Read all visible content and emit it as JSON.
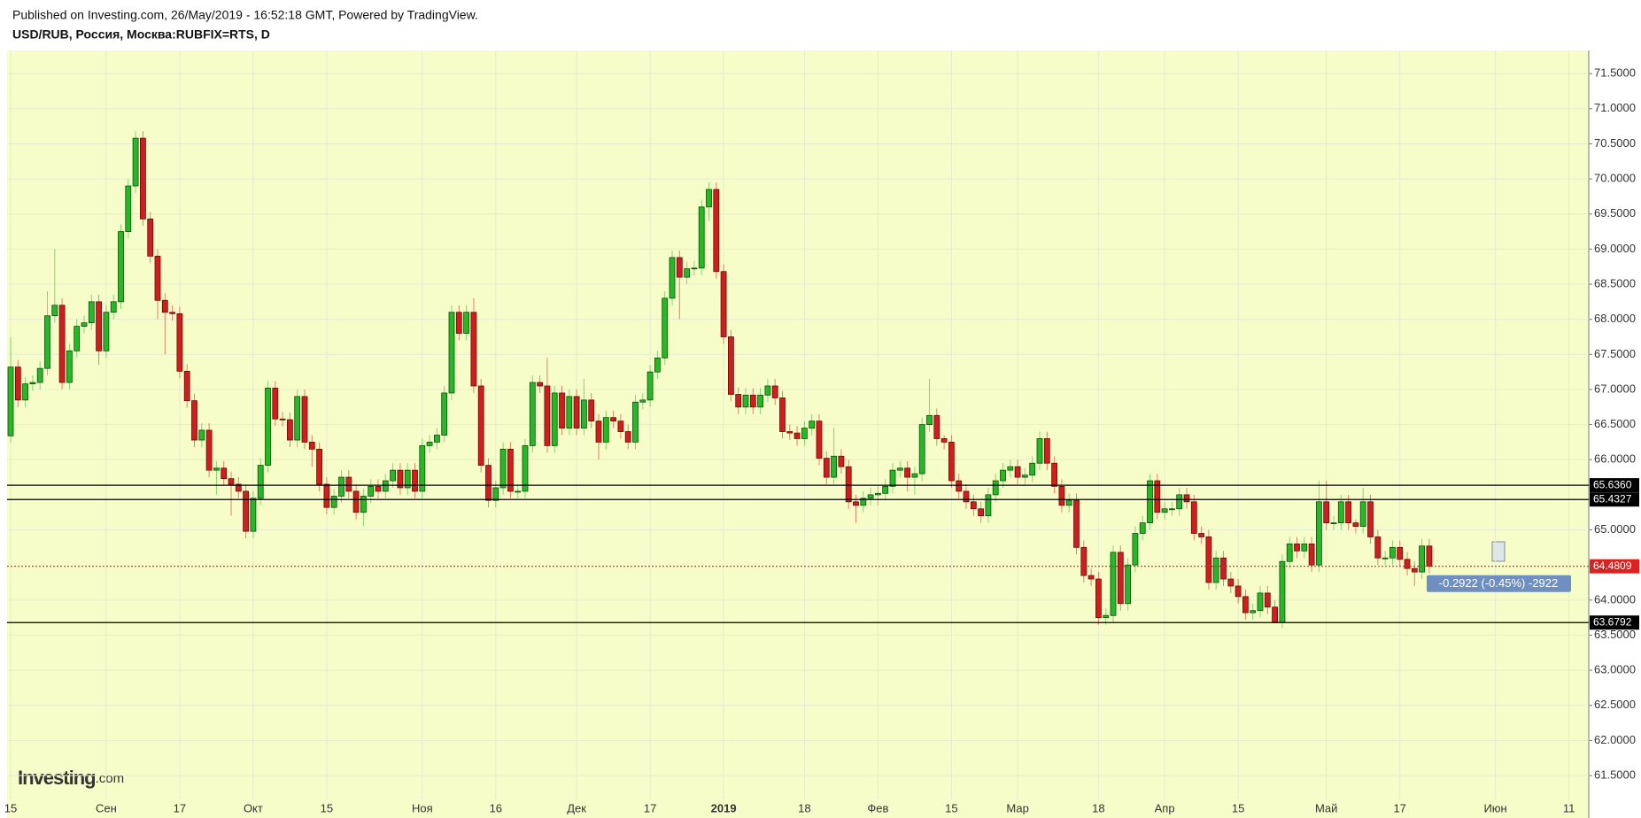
{
  "chart_data": {
    "type": "candlestick",
    "header": "Published on Investing.com, 26/May/2019 - 16:52:18 GMT, Powered by TradingView.",
    "title": "USD/RUB, Россия, Москва:RUBFIX=RTS, D",
    "logo": {
      "brand": "Investing",
      "suffix": ".com"
    },
    "up_color": "#27b827",
    "down_color": "#d21d1d",
    "grid": true,
    "categories": [
      "15",
      null,
      null,
      null,
      null,
      null,
      null,
      null,
      null,
      null,
      null,
      null,
      null,
      "Сен",
      null,
      null,
      null,
      null,
      null,
      null,
      null,
      null,
      null,
      "17",
      null,
      null,
      null,
      null,
      null,
      null,
      null,
      null,
      null,
      "Окт",
      null,
      null,
      null,
      null,
      null,
      null,
      null,
      null,
      null,
      "15",
      null,
      null,
      null,
      null,
      null,
      null,
      null,
      null,
      null,
      null,
      null,
      null,
      "Ноя",
      null,
      null,
      null,
      null,
      null,
      null,
      null,
      null,
      null,
      "16",
      null,
      null,
      null,
      null,
      null,
      null,
      null,
      null,
      null,
      null,
      "Дек",
      null,
      null,
      null,
      null,
      null,
      null,
      null,
      null,
      null,
      "17",
      null,
      null,
      null,
      null,
      null,
      null,
      null,
      null,
      null,
      "2019",
      null,
      null,
      null,
      null,
      null,
      null,
      null,
      null,
      null,
      null,
      "18",
      null,
      null,
      null,
      null,
      null,
      null,
      null,
      null,
      null,
      "Фев",
      null,
      null,
      null,
      null,
      null,
      null,
      null,
      null,
      null,
      "15",
      null,
      null,
      null,
      null,
      null,
      null,
      null,
      null,
      "Мар",
      null,
      null,
      null,
      null,
      null,
      null,
      null,
      null,
      null,
      null,
      "18",
      null,
      null,
      null,
      null,
      null,
      null,
      null,
      null,
      "Апр",
      null,
      null,
      null,
      null,
      null,
      null,
      null,
      null,
      null,
      "15",
      null,
      null,
      null,
      null,
      null,
      null,
      null,
      null,
      null,
      null,
      null,
      "Май",
      null,
      null,
      null,
      null,
      null,
      null,
      null,
      null,
      null,
      "17",
      null,
      null,
      null,
      null,
      null,
      null,
      null,
      null,
      null,
      null,
      null,
      null,
      "Июн",
      null,
      null,
      null,
      null,
      null,
      null,
      null,
      null,
      null,
      "11"
    ],
    "open": [
      66.34,
      67.32,
      66.85,
      67.08,
      67.1,
      67.3,
      68.05,
      68.2,
      67.1,
      67.55,
      67.9,
      67.95,
      68.25,
      67.55,
      68.1,
      68.25,
      69.25,
      69.9,
      70.58,
      69.43,
      68.9,
      68.27,
      68.1,
      68.08,
      67.26,
      66.84,
      66.28,
      66.42,
      65.85,
      65.88,
      65.73,
      65.65,
      65.55,
      64.98,
      65.45,
      65.92,
      67.02,
      66.58,
      66.57,
      66.28,
      66.9,
      66.25,
      66.15,
      65.65,
      65.32,
      65.48,
      65.75,
      65.55,
      65.25,
      65.48,
      65.62,
      65.55,
      65.7,
      65.85,
      65.6,
      65.85,
      65.55,
      66.2,
      66.25,
      66.35,
      66.95,
      68.1,
      67.8,
      68.1,
      67.05,
      65.92,
      65.42,
      65.6,
      66.15,
      65.55,
      65.55,
      66.2,
      67.1,
      67.05,
      66.2,
      66.95,
      66.45,
      66.9,
      66.45,
      66.85,
      66.55,
      66.25,
      66.6,
      66.55,
      66.4,
      66.25,
      66.82,
      66.85,
      67.25,
      67.45,
      68.3,
      68.88,
      68.6,
      68.72,
      68.73,
      69.6,
      69.85,
      68.68,
      67.75,
      66.93,
      66.75,
      66.92,
      66.75,
      66.92,
      67.05,
      66.88,
      66.4,
      66.38,
      66.3,
      66.45,
      66.55,
      66.02,
      65.75,
      66.05,
      65.9,
      65.4,
      65.35,
      65.45,
      65.5,
      65.52,
      65.62,
      65.85,
      65.88,
      65.75,
      65.8,
      66.5,
      66.63,
      66.3,
      66.25,
      65.7,
      65.55,
      65.4,
      65.3,
      65.2,
      65.5,
      65.7,
      65.85,
      65.9,
      65.75,
      65.78,
      65.95,
      66.3,
      65.95,
      65.62,
      65.35,
      65.42,
      64.75,
      64.35,
      64.3,
      63.75,
      63.78,
      64.68,
      63.95,
      64.5,
      64.95,
      65.1,
      65.7,
      65.25,
      65.3,
      65.3,
      65.5,
      65.4,
      64.95,
      64.9,
      64.25,
      64.6,
      64.3,
      64.2,
      64.05,
      63.82,
      63.85,
      64.1,
      63.9,
      63.68,
      64.55,
      64.8,
      64.7,
      64.8,
      64.5,
      65.4,
      65.1,
      65.1,
      65.4,
      65.1,
      65.05,
      65.4,
      64.9,
      64.6,
      64.6,
      64.75,
      64.58,
      64.45,
      64.4,
      64.77,
      null,
      null,
      null,
      null,
      null,
      null,
      null,
      null,
      null,
      null,
      null,
      null,
      null,
      null,
      null,
      null,
      null,
      null,
      null
    ],
    "high": [
      67.75,
      67.42,
      67.18,
      67.2,
      67.4,
      68.4,
      69.0,
      68.3,
      67.65,
      68.0,
      68.05,
      68.35,
      68.35,
      68.2,
      68.35,
      69.35,
      70.0,
      70.68,
      70.68,
      69.53,
      69.0,
      68.37,
      68.2,
      68.18,
      67.36,
      66.94,
      66.52,
      66.52,
      65.98,
      65.98,
      65.83,
      65.75,
      65.65,
      65.55,
      66.02,
      67.12,
      67.12,
      66.68,
      66.67,
      67.0,
      67.0,
      66.35,
      66.25,
      65.75,
      65.58,
      65.85,
      65.85,
      65.65,
      65.58,
      65.72,
      65.72,
      65.8,
      65.95,
      65.95,
      65.95,
      65.95,
      66.3,
      66.35,
      66.45,
      67.05,
      68.2,
      68.2,
      68.2,
      68.3,
      67.15,
      66.02,
      65.7,
      66.25,
      66.25,
      65.65,
      66.3,
      67.2,
      67.2,
      67.45,
      67.05,
      67.05,
      67.0,
      67.0,
      67.15,
      66.95,
      66.65,
      66.7,
      66.7,
      66.65,
      66.5,
      66.92,
      66.95,
      67.35,
      67.55,
      68.4,
      68.98,
      68.98,
      68.82,
      68.83,
      69.7,
      69.95,
      69.95,
      68.78,
      67.85,
      67.03,
      67.02,
      67.02,
      67.02,
      67.15,
      67.15,
      66.98,
      66.5,
      66.48,
      66.55,
      66.65,
      66.65,
      66.12,
      66.45,
      66.15,
      66.0,
      65.5,
      65.55,
      65.6,
      65.62,
      65.72,
      65.95,
      65.98,
      65.98,
      65.9,
      66.6,
      67.15,
      66.73,
      66.35,
      66.35,
      65.8,
      65.65,
      65.5,
      65.4,
      65.6,
      65.8,
      65.95,
      66.0,
      66.0,
      65.88,
      66.05,
      66.4,
      66.4,
      66.05,
      65.72,
      65.52,
      65.52,
      64.85,
      64.45,
      64.4,
      63.88,
      64.78,
      64.78,
      64.6,
      65.05,
      65.2,
      65.8,
      65.8,
      65.4,
      65.4,
      65.6,
      65.6,
      65.5,
      65.05,
      65.0,
      64.7,
      64.7,
      64.4,
      64.3,
      64.15,
      63.95,
      64.2,
      64.2,
      64.0,
      64.65,
      64.9,
      64.9,
      64.9,
      64.9,
      65.7,
      65.7,
      65.2,
      65.5,
      65.5,
      65.15,
      65.6,
      65.5,
      65.0,
      64.7,
      64.85,
      64.85,
      64.68,
      64.55,
      64.87,
      64.87,
      null,
      null,
      null,
      null,
      null,
      null,
      null,
      null,
      null,
      null,
      null,
      null,
      null,
      null,
      null,
      null,
      null,
      null,
      null
    ],
    "low": [
      66.24,
      66.75,
      66.75,
      66.98,
      67.0,
      67.2,
      67.95,
      67.0,
      67.0,
      67.45,
      67.8,
      67.85,
      67.35,
      67.45,
      68.0,
      68.15,
      69.15,
      69.8,
      69.33,
      68.8,
      68.0,
      67.5,
      67.98,
      67.16,
      66.74,
      66.18,
      66.18,
      65.75,
      65.5,
      65.63,
      65.2,
      65.45,
      64.88,
      64.88,
      65.35,
      65.82,
      66.48,
      66.47,
      66.18,
      66.18,
      66.15,
      65.9,
      65.55,
      65.22,
      65.22,
      65.38,
      65.45,
      65.15,
      65.05,
      65.38,
      65.45,
      65.45,
      65.6,
      65.5,
      65.5,
      65.45,
      65.45,
      66.1,
      66.15,
      66.25,
      66.85,
      67.7,
      67.7,
      66.95,
      65.82,
      65.32,
      65.32,
      65.5,
      65.45,
      65.45,
      65.45,
      66.1,
      66.95,
      66.1,
      66.1,
      66.35,
      66.35,
      66.35,
      66.35,
      66.45,
      66.0,
      66.15,
      66.45,
      66.3,
      66.15,
      66.15,
      66.72,
      66.75,
      67.15,
      67.35,
      68.2,
      68.0,
      68.5,
      68.62,
      68.63,
      69.4,
      68.58,
      67.65,
      66.83,
      66.65,
      66.65,
      66.65,
      66.65,
      66.82,
      66.78,
      66.3,
      66.28,
      66.2,
      66.2,
      66.35,
      65.92,
      65.65,
      65.65,
      65.8,
      65.3,
      65.1,
      65.25,
      65.35,
      65.35,
      65.42,
      65.52,
      65.75,
      65.55,
      65.5,
      65.7,
      66.4,
      66.2,
      66.15,
      65.6,
      65.45,
      65.3,
      65.2,
      65.1,
      65.1,
      65.4,
      65.6,
      65.75,
      65.65,
      65.65,
      65.68,
      65.85,
      65.85,
      65.52,
      65.25,
      65.25,
      64.65,
      64.25,
      64.2,
      63.65,
      63.65,
      63.68,
      63.85,
      63.85,
      64.4,
      64.85,
      65.0,
      65.15,
      65.15,
      65.2,
      65.2,
      65.3,
      64.85,
      64.8,
      64.15,
      64.15,
      64.2,
      64.1,
      63.95,
      63.72,
      63.72,
      63.75,
      63.8,
      63.68,
      63.6,
      64.45,
      64.6,
      64.6,
      64.4,
      64.4,
      65.0,
      65.0,
      65.0,
      65.0,
      64.95,
      64.95,
      64.8,
      64.5,
      64.5,
      64.5,
      64.48,
      64.35,
      64.2,
      64.3,
      64.38,
      null,
      null,
      null,
      null,
      null,
      null,
      null,
      null,
      null,
      null,
      null,
      null,
      null,
      null,
      null,
      null,
      null,
      null,
      null
    ],
    "close": [
      67.32,
      66.85,
      67.08,
      67.1,
      67.3,
      68.05,
      68.2,
      67.1,
      67.55,
      67.9,
      67.95,
      68.25,
      67.55,
      68.1,
      68.25,
      69.25,
      69.9,
      70.58,
      69.43,
      68.9,
      68.27,
      68.1,
      68.08,
      67.26,
      66.84,
      66.28,
      66.42,
      65.85,
      65.88,
      65.73,
      65.65,
      65.55,
      64.98,
      65.45,
      65.92,
      67.02,
      66.58,
      66.57,
      66.28,
      66.9,
      66.25,
      66.15,
      65.65,
      65.32,
      65.48,
      65.75,
      65.55,
      65.25,
      65.48,
      65.62,
      65.55,
      65.7,
      65.85,
      65.6,
      65.85,
      65.55,
      66.2,
      66.25,
      66.35,
      66.95,
      68.1,
      67.8,
      68.1,
      67.05,
      65.92,
      65.42,
      65.6,
      66.15,
      65.55,
      65.55,
      66.2,
      67.1,
      67.05,
      66.2,
      66.95,
      66.45,
      66.9,
      66.45,
      66.85,
      66.55,
      66.25,
      66.6,
      66.55,
      66.4,
      66.25,
      66.82,
      66.85,
      67.25,
      67.45,
      68.3,
      68.88,
      68.6,
      68.72,
      68.73,
      69.6,
      69.85,
      68.68,
      67.75,
      66.93,
      66.75,
      66.92,
      66.75,
      66.92,
      67.05,
      66.88,
      66.4,
      66.38,
      66.3,
      66.45,
      66.55,
      66.02,
      65.75,
      66.05,
      65.9,
      65.4,
      65.35,
      65.45,
      65.5,
      65.52,
      65.62,
      65.85,
      65.88,
      65.75,
      65.8,
      66.5,
      66.63,
      66.3,
      66.25,
      65.7,
      65.55,
      65.4,
      65.3,
      65.2,
      65.5,
      65.7,
      65.85,
      65.9,
      65.75,
      65.78,
      65.95,
      66.3,
      65.95,
      65.62,
      65.35,
      65.42,
      64.75,
      64.35,
      64.3,
      63.75,
      63.78,
      64.68,
      63.95,
      64.5,
      64.95,
      65.1,
      65.7,
      65.25,
      65.3,
      65.3,
      65.5,
      65.4,
      64.95,
      64.9,
      64.25,
      64.6,
      64.3,
      64.2,
      64.05,
      63.82,
      63.85,
      64.1,
      63.9,
      63.68,
      64.55,
      64.8,
      64.7,
      64.8,
      64.5,
      65.4,
      65.1,
      65.1,
      65.4,
      65.1,
      65.05,
      65.4,
      64.9,
      64.6,
      64.6,
      64.75,
      64.58,
      64.45,
      64.4,
      64.77,
      64.4809,
      null,
      null,
      null,
      null,
      null,
      null,
      null,
      null,
      null,
      null,
      null,
      null,
      null,
      null,
      null,
      null,
      null,
      null,
      null
    ],
    "ylim": [
      61.16,
      71.83
    ],
    "yticks": [
      {
        "value": 61.5,
        "label": "61.5000"
      },
      {
        "value": 62,
        "label": "62.0000"
      },
      {
        "value": 62.5,
        "label": "62.5000"
      },
      {
        "value": 63,
        "label": "63.0000"
      },
      {
        "value": 63.5,
        "label": "63.5000"
      },
      {
        "value": 64,
        "label": "64.0000"
      },
      {
        "value": 65,
        "label": "65.0000"
      },
      {
        "value": 66,
        "label": "66.0000"
      },
      {
        "value": 66.5,
        "label": "66.5000"
      },
      {
        "value": 67,
        "label": "67.0000"
      },
      {
        "value": 67.5,
        "label": "67.5000"
      },
      {
        "value": 68,
        "label": "68.0000"
      },
      {
        "value": 68.5,
        "label": "68.5000"
      },
      {
        "value": 69,
        "label": "69.0000"
      },
      {
        "value": 69.5,
        "label": "69.5000"
      },
      {
        "value": 70,
        "label": "70.0000"
      },
      {
        "value": 70.5,
        "label": "70.5000"
      },
      {
        "value": 71,
        "label": "71.0000"
      },
      {
        "value": 71.5,
        "label": "71.5000"
      }
    ],
    "levels": [
      {
        "value": 65.636,
        "label": "65.6360"
      },
      {
        "value": 65.4327,
        "label": "65.4327"
      },
      {
        "value": 63.6792,
        "label": "63.6792"
      }
    ],
    "price_line": {
      "value": 64.4809,
      "label": "64.4809",
      "color": "#e0201e"
    },
    "annotation": "-0.2922 (-0.45%) -2922"
  }
}
